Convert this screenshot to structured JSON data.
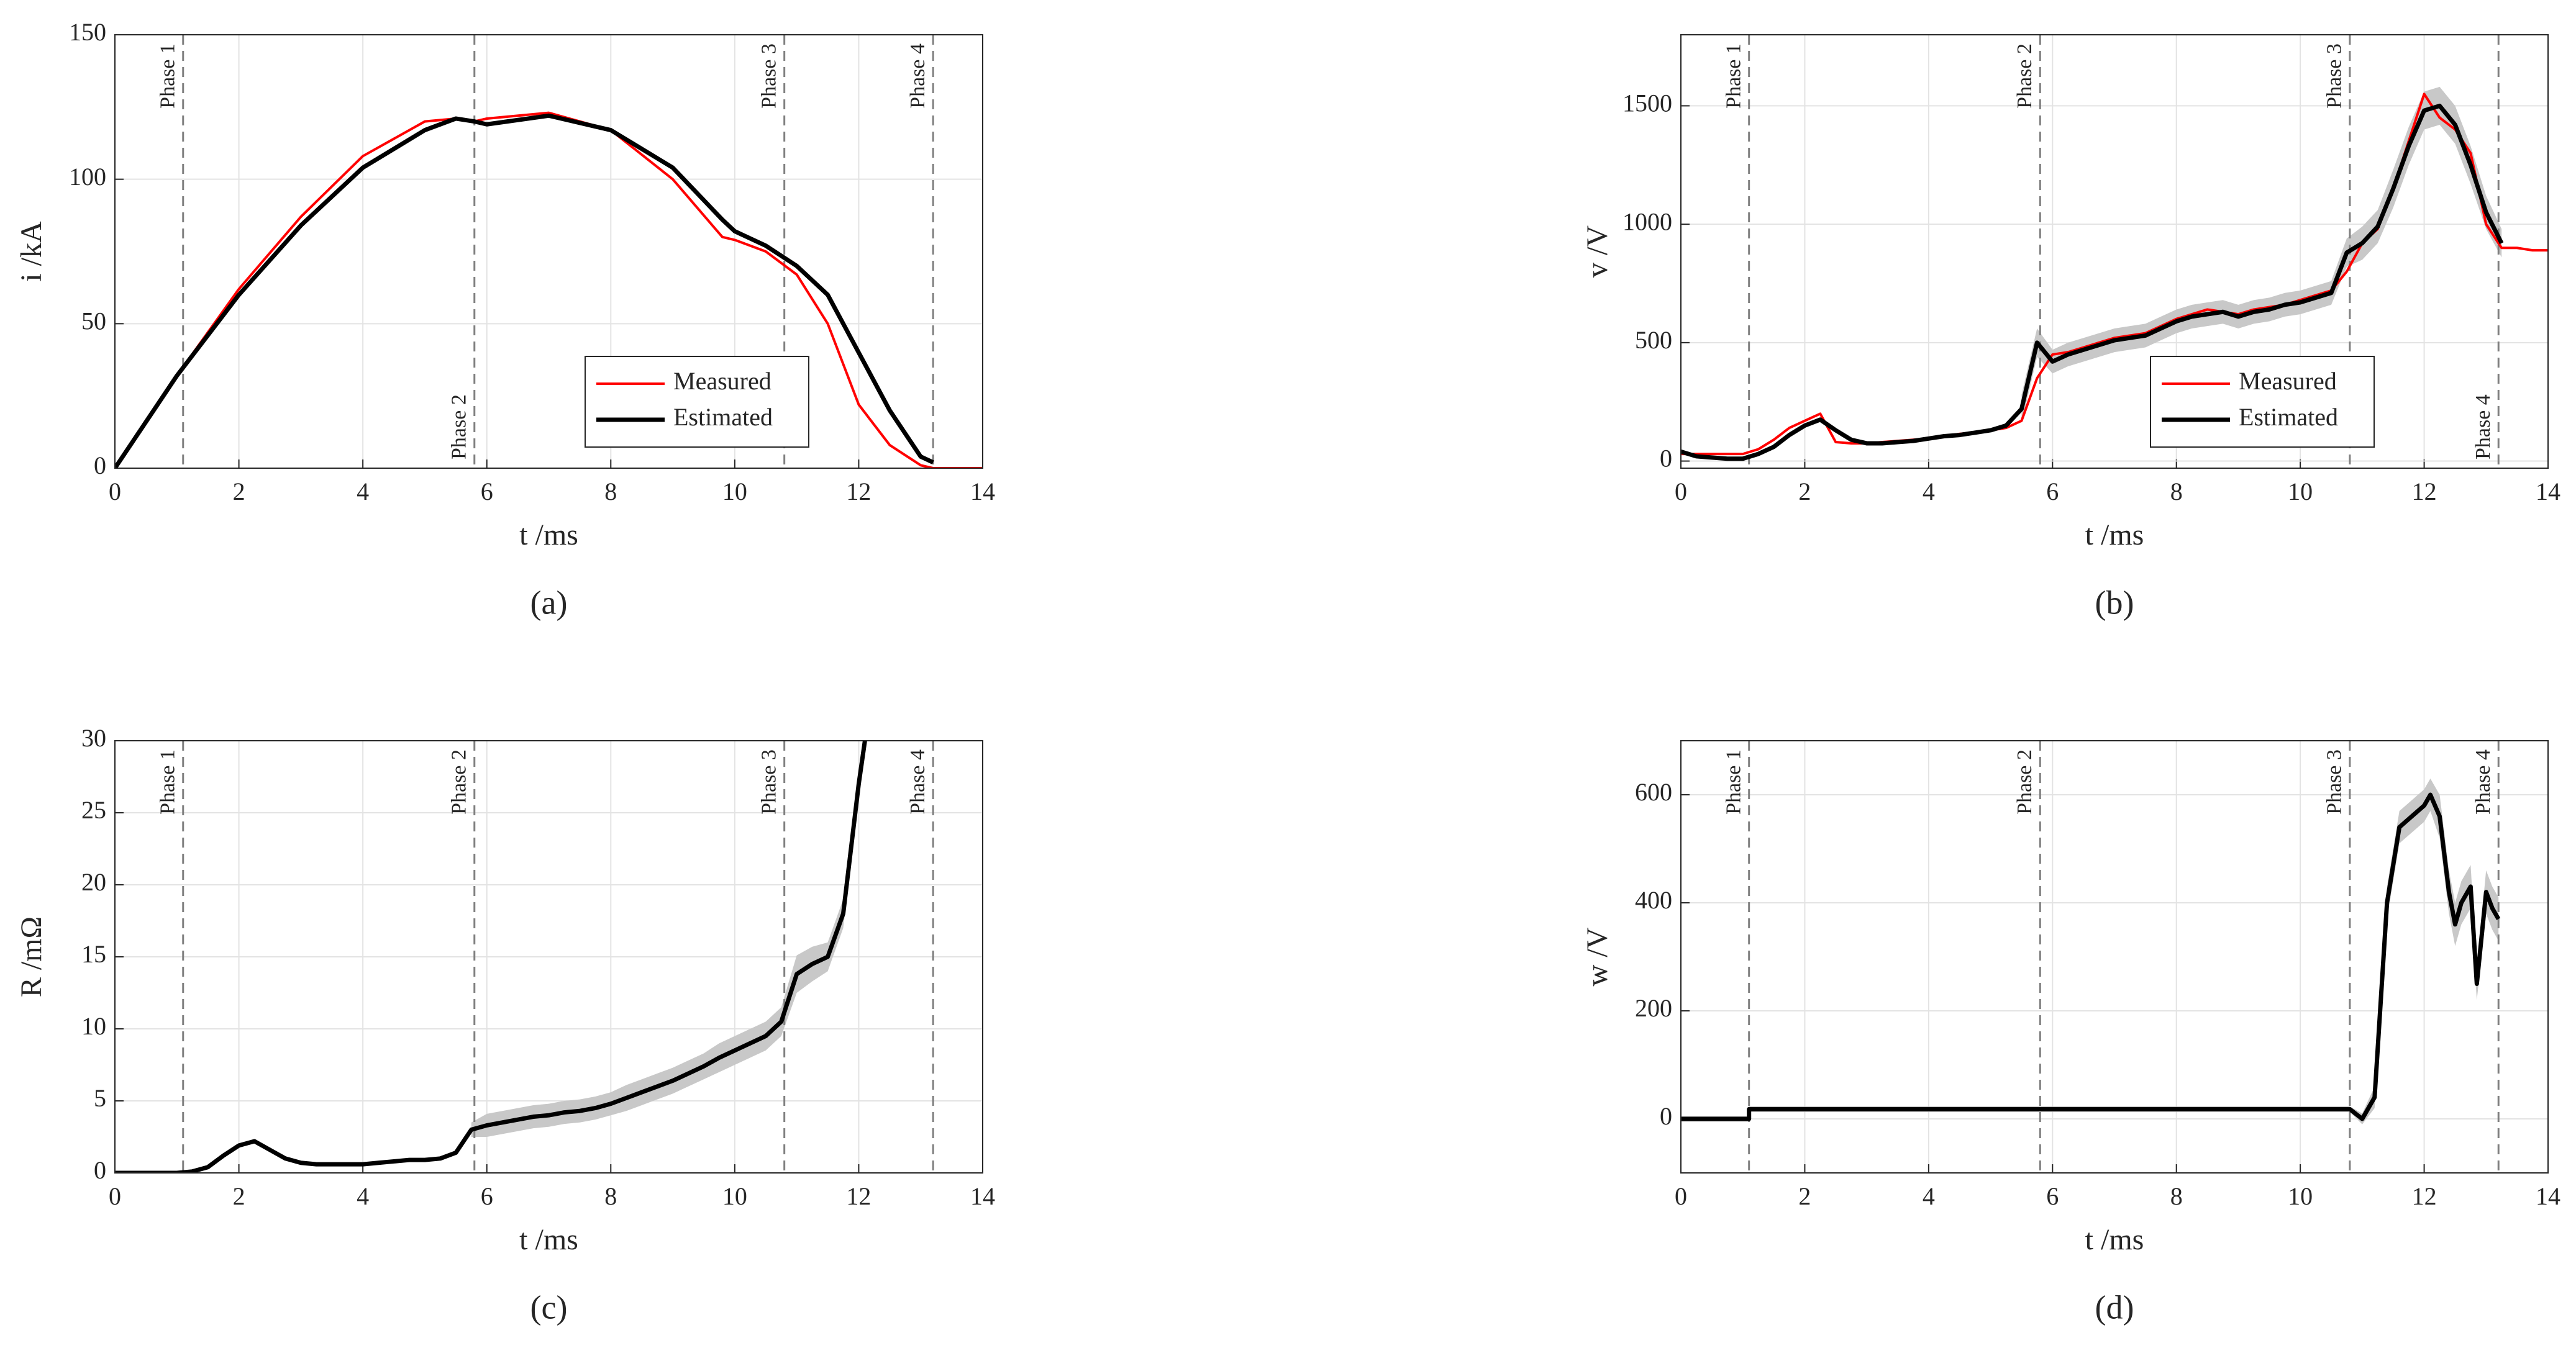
{
  "chart_data": [
    {
      "type": "line",
      "caption": "(a)",
      "xlabel": "t /ms",
      "ylabel": "i /kA",
      "xlim": [
        0,
        14
      ],
      "xticks": [
        0,
        2,
        4,
        6,
        8,
        10,
        12,
        14
      ],
      "ylim": [
        0,
        150
      ],
      "yticks": [
        0,
        50,
        100,
        150
      ],
      "grid": true,
      "legend": "lower right",
      "phases": [
        {
          "label": "Phase 1",
          "x": 1.1,
          "label_pos": "top"
        },
        {
          "label": "Phase 2",
          "x": 5.8,
          "label_pos": "bottom"
        },
        {
          "label": "Phase 3",
          "x": 10.8,
          "label_pos": "top"
        },
        {
          "label": "Phase 4",
          "x": 13.2,
          "label_pos": "top"
        }
      ],
      "x": [
        0,
        1,
        2,
        3,
        4,
        5,
        5.5,
        5.8,
        6,
        7,
        8,
        9,
        9.8,
        10,
        10.5,
        11,
        11.5,
        12,
        12.5,
        13,
        13.2,
        13.5,
        14
      ],
      "series": [
        {
          "name": "Measured",
          "color": "#ff0000",
          "values": [
            0,
            32,
            62,
            87,
            108,
            120,
            121,
            120,
            121,
            123,
            117,
            100,
            80,
            79,
            75,
            67,
            50,
            22,
            8,
            1,
            0,
            0,
            0
          ]
        },
        {
          "name": "Estimated",
          "color": "#000000",
          "values": [
            0,
            32,
            60,
            84,
            104,
            117,
            121,
            120,
            119,
            122,
            117,
            104,
            86,
            82,
            77,
            70,
            60,
            40,
            20,
            4,
            2,
            null,
            null
          ]
        }
      ]
    },
    {
      "type": "line",
      "caption": "(b)",
      "xlabel": "t /ms",
      "ylabel": "v /V",
      "xlim": [
        0,
        14
      ],
      "xticks": [
        0,
        2,
        4,
        6,
        8,
        10,
        12,
        14
      ],
      "ylim": [
        -30,
        1800
      ],
      "yticks": [
        0,
        500,
        1000,
        1500
      ],
      "grid": true,
      "legend": "lower right",
      "phases": [
        {
          "label": "Phase 1",
          "x": 1.1,
          "label_pos": "top"
        },
        {
          "label": "Phase 2",
          "x": 5.8,
          "label_pos": "top"
        },
        {
          "label": "Phase 3",
          "x": 10.8,
          "label_pos": "top"
        },
        {
          "label": "Phase 4",
          "x": 13.2,
          "label_pos": "bottom"
        }
      ],
      "x": [
        0,
        0.25,
        0.5,
        0.75,
        1,
        1.25,
        1.5,
        1.75,
        2,
        2.25,
        2.5,
        2.75,
        3,
        3.25,
        3.5,
        3.75,
        4,
        4.25,
        4.5,
        4.75,
        5,
        5.25,
        5.5,
        5.75,
        6,
        6.25,
        6.5,
        6.75,
        7,
        7.25,
        7.5,
        7.75,
        8,
        8.25,
        8.5,
        8.75,
        9,
        9.25,
        9.5,
        9.75,
        10,
        10.25,
        10.5,
        10.75,
        11,
        11.25,
        11.5,
        11.75,
        12,
        12.25,
        12.5,
        12.75,
        13,
        13.25,
        13.5,
        13.75,
        14
      ],
      "series": [
        {
          "name": "Measured",
          "color": "#ff0000",
          "values": [
            30,
            30,
            30,
            30,
            30,
            50,
            90,
            140,
            170,
            200,
            80,
            75,
            75,
            80,
            85,
            90,
            95,
            105,
            115,
            120,
            130,
            140,
            170,
            350,
            450,
            460,
            480,
            500,
            520,
            530,
            540,
            570,
            600,
            620,
            640,
            630,
            620,
            640,
            650,
            660,
            680,
            700,
            720,
            800,
            920,
            980,
            1150,
            1350,
            1550,
            1450,
            1400,
            1300,
            1000,
            900,
            900,
            890,
            890
          ]
        },
        {
          "name": "Estimated",
          "color": "#000000",
          "band_color": "#c8c8c8",
          "values": [
            40,
            20,
            15,
            10,
            10,
            30,
            60,
            110,
            150,
            175,
            130,
            90,
            75,
            75,
            80,
            85,
            95,
            105,
            110,
            120,
            130,
            150,
            220,
            500,
            420,
            450,
            470,
            490,
            510,
            520,
            530,
            560,
            590,
            610,
            620,
            630,
            610,
            630,
            640,
            660,
            670,
            690,
            710,
            880,
            920,
            990,
            1150,
            1330,
            1480,
            1500,
            1420,
            1250,
            1050,
            920,
            null,
            null,
            null
          ],
          "lower": [
            null,
            null,
            null,
            null,
            null,
            null,
            null,
            null,
            null,
            null,
            null,
            null,
            null,
            null,
            null,
            null,
            null,
            null,
            null,
            null,
            null,
            null,
            160,
            440,
            370,
            400,
            420,
            440,
            460,
            470,
            480,
            510,
            540,
            560,
            570,
            580,
            560,
            580,
            590,
            610,
            620,
            640,
            660,
            820,
            850,
            920,
            1070,
            1250,
            1400,
            1420,
            1340,
            1170,
            980,
            860,
            null,
            null,
            null
          ],
          "upper": [
            null,
            null,
            null,
            null,
            null,
            null,
            null,
            null,
            null,
            null,
            null,
            null,
            null,
            null,
            null,
            null,
            null,
            null,
            null,
            null,
            null,
            null,
            280,
            560,
            470,
            500,
            520,
            540,
            560,
            570,
            580,
            610,
            640,
            660,
            670,
            680,
            660,
            680,
            690,
            710,
            720,
            740,
            760,
            940,
            990,
            1060,
            1230,
            1410,
            1560,
            1580,
            1500,
            1330,
            1120,
            980,
            null,
            null,
            null
          ]
        }
      ]
    },
    {
      "type": "line",
      "caption": "(c)",
      "xlabel": "t /ms",
      "ylabel": "R /mΩ",
      "xlim": [
        0,
        14
      ],
      "xticks": [
        0,
        2,
        4,
        6,
        8,
        10,
        12,
        14
      ],
      "ylim": [
        0,
        30
      ],
      "yticks": [
        0,
        5,
        10,
        15,
        20,
        25,
        30
      ],
      "grid": true,
      "phases": [
        {
          "label": "Phase 1",
          "x": 1.1,
          "label_pos": "top"
        },
        {
          "label": "Phase 2",
          "x": 5.8,
          "label_pos": "top"
        },
        {
          "label": "Phase 3",
          "x": 10.8,
          "label_pos": "top"
        },
        {
          "label": "Phase 4",
          "x": 13.2,
          "label_pos": "top"
        }
      ],
      "x": [
        0,
        0.25,
        0.5,
        0.75,
        1,
        1.25,
        1.5,
        1.75,
        2,
        2.25,
        2.5,
        2.75,
        3,
        3.25,
        3.5,
        3.75,
        4,
        4.25,
        4.5,
        4.75,
        5,
        5.25,
        5.5,
        5.75,
        6,
        6.25,
        6.5,
        6.75,
        7,
        7.25,
        7.5,
        7.75,
        8,
        8.25,
        8.5,
        8.75,
        9,
        9.25,
        9.5,
        9.75,
        10,
        10.25,
        10.5,
        10.75,
        11,
        11.25,
        11.5,
        11.75,
        12,
        12.1
      ],
      "series": [
        {
          "name": "Estimated",
          "color": "#000000",
          "band_color": "#c8c8c8",
          "values": [
            0,
            0,
            0,
            0,
            0,
            0.1,
            0.4,
            1.2,
            1.9,
            2.2,
            1.6,
            1.0,
            0.7,
            0.6,
            0.6,
            0.6,
            0.6,
            0.7,
            0.8,
            0.9,
            0.9,
            1.0,
            1.4,
            3.0,
            3.3,
            3.5,
            3.7,
            3.9,
            4.0,
            4.2,
            4.3,
            4.5,
            4.8,
            5.2,
            5.6,
            6.0,
            6.4,
            6.9,
            7.4,
            8.0,
            8.5,
            9.0,
            9.5,
            10.5,
            13.8,
            14.5,
            15.0,
            18.0,
            27,
            30
          ],
          "lower": [
            null,
            null,
            null,
            null,
            null,
            null,
            null,
            null,
            null,
            null,
            null,
            null,
            null,
            null,
            null,
            null,
            null,
            null,
            null,
            null,
            null,
            null,
            null,
            2.5,
            2.5,
            2.7,
            2.9,
            3.1,
            3.2,
            3.4,
            3.5,
            3.7,
            4.0,
            4.3,
            4.7,
            5.1,
            5.5,
            6.0,
            6.5,
            7.0,
            7.5,
            8.0,
            8.5,
            9.5,
            12.5,
            13.3,
            14.0,
            17.0,
            26,
            29
          ],
          "upper": [
            null,
            null,
            null,
            null,
            null,
            null,
            null,
            null,
            null,
            null,
            null,
            null,
            null,
            null,
            null,
            null,
            null,
            null,
            null,
            null,
            null,
            null,
            null,
            3.5,
            4.1,
            4.3,
            4.5,
            4.7,
            4.8,
            5.0,
            5.1,
            5.3,
            5.6,
            6.1,
            6.5,
            6.9,
            7.3,
            7.8,
            8.3,
            9.0,
            9.5,
            10.0,
            10.5,
            11.5,
            15.1,
            15.7,
            16.0,
            19.0,
            28,
            31
          ]
        }
      ]
    },
    {
      "type": "line",
      "caption": "(d)",
      "xlabel": "t /ms",
      "ylabel": "w /V",
      "xlim": [
        0,
        14
      ],
      "xticks": [
        0,
        2,
        4,
        6,
        8,
        10,
        12,
        14
      ],
      "ylim": [
        -100,
        700
      ],
      "yticks": [
        0,
        200,
        400,
        600
      ],
      "grid": true,
      "phases": [
        {
          "label": "Phase 1",
          "x": 1.1,
          "label_pos": "top"
        },
        {
          "label": "Phase 2",
          "x": 5.8,
          "label_pos": "top"
        },
        {
          "label": "Phase 3",
          "x": 10.8,
          "label_pos": "top"
        },
        {
          "label": "Phase 4",
          "x": 13.2,
          "label_pos": "top"
        }
      ],
      "x": [
        0,
        1.1,
        1.1,
        5,
        10,
        10.8,
        11,
        11.2,
        11.4,
        11.6,
        11.8,
        12,
        12.1,
        12.25,
        12.4,
        12.5,
        12.6,
        12.75,
        12.85,
        13,
        13.1,
        13.2
      ],
      "series": [
        {
          "name": "Estimated",
          "color": "#000000",
          "band_color": "#c8c8c8",
          "values": [
            0,
            0,
            18,
            18,
            18,
            18,
            0,
            40,
            400,
            540,
            560,
            580,
            600,
            560,
            420,
            360,
            400,
            430,
            250,
            420,
            390,
            370
          ],
          "lower": [
            -5,
            -5,
            13,
            13,
            13,
            13,
            -10,
            20,
            370,
            510,
            530,
            550,
            570,
            520,
            380,
            320,
            360,
            390,
            220,
            380,
            350,
            330
          ],
          "upper": [
            5,
            5,
            23,
            23,
            23,
            23,
            10,
            60,
            430,
            570,
            590,
            610,
            630,
            600,
            460,
            400,
            440,
            470,
            280,
            460,
            430,
            410
          ]
        }
      ]
    }
  ]
}
